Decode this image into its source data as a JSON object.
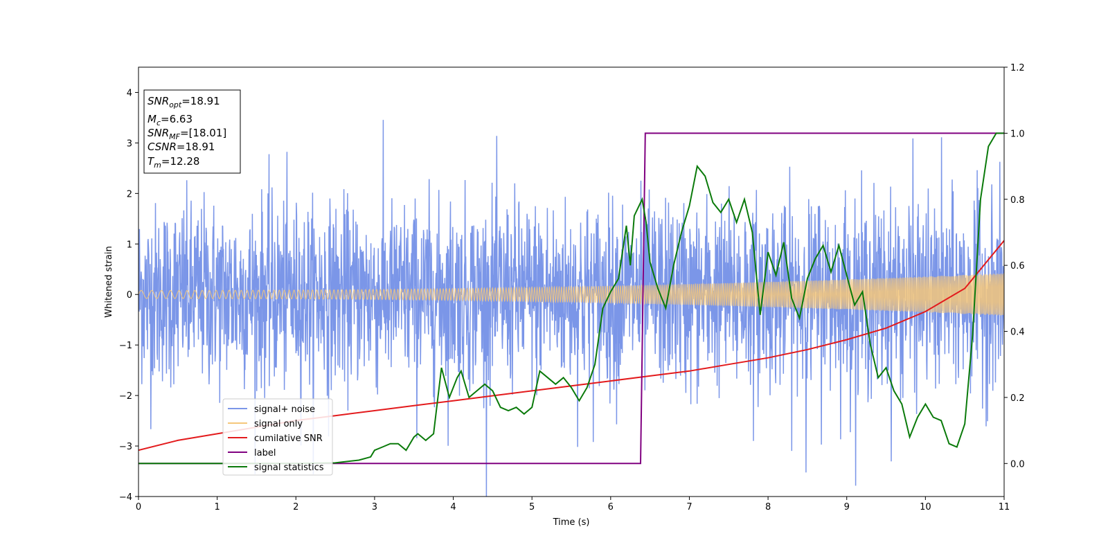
{
  "chart_data": {
    "type": "line",
    "xlabel": "Time (s)",
    "ylabel": "Whitened strain",
    "xlim": [
      0,
      11
    ],
    "ylim": [
      -4,
      4.5
    ],
    "y2lim": [
      -0.1,
      1.2
    ],
    "xticks": [
      0,
      1,
      2,
      3,
      4,
      5,
      6,
      7,
      8,
      9,
      10,
      11
    ],
    "yticks": [
      -4,
      -3,
      -2,
      -1,
      0,
      1,
      2,
      3,
      4
    ],
    "yticks_labels": [
      "−4",
      "−3",
      "−2",
      "−1",
      "0",
      "1",
      "2",
      "3",
      "4"
    ],
    "y2ticks": [
      0.0,
      0.2,
      0.4,
      0.6,
      0.8,
      1.0,
      1.2
    ],
    "y2ticks_labels": [
      "0.0",
      "0.2",
      "0.4",
      "0.6",
      "0.8",
      "1.0",
      "1.2"
    ],
    "grid": false,
    "legend_position": "bottom-left",
    "stats_box": {
      "position": "top-left",
      "lines": [
        {
          "var": "SNR",
          "sub": "opt",
          "value": "=18.91"
        },
        {
          "var": "M",
          "sub": "c",
          "value": "=6.63"
        },
        {
          "var": "SNR",
          "sub": "MF",
          "value": "=[18.01]"
        },
        {
          "var": "CSNR",
          "sub": "",
          "value": "=18.91"
        },
        {
          "var": "T",
          "sub": "m",
          "value": "=12.28"
        }
      ]
    },
    "series": [
      {
        "name": "signal+ noise",
        "axis": "left",
        "color": "#7b96e8",
        "style": "noise",
        "noise_sigma": 0.9,
        "samples": 2600,
        "envelope_start": 0.08,
        "envelope_end": 0.42
      },
      {
        "name": "signal only",
        "axis": "left",
        "color": "#f5c77a",
        "style": "chirp",
        "amp_start": 0.08,
        "amp_end": 0.42,
        "freq_start": 7.0,
        "freq_end": 60.0
      },
      {
        "name": "cumilative SNR",
        "axis": "right",
        "color": "#e31a1c",
        "x": [
          0,
          0.5,
          1,
          1.5,
          2,
          2.5,
          3,
          3.5,
          4,
          4.5,
          5,
          5.5,
          6,
          6.5,
          7,
          7.5,
          8,
          8.5,
          9,
          9.5,
          10,
          10.5,
          11
        ],
        "values": [
          0.04,
          0.07,
          0.09,
          0.11,
          0.13,
          0.145,
          0.16,
          0.175,
          0.19,
          0.205,
          0.22,
          0.235,
          0.25,
          0.265,
          0.28,
          0.3,
          0.32,
          0.345,
          0.375,
          0.41,
          0.46,
          0.53,
          0.675
        ]
      },
      {
        "name": "label",
        "axis": "right",
        "color": "#800080",
        "x": [
          0,
          6.38,
          6.44,
          11
        ],
        "values": [
          0.0,
          0.0,
          1.0,
          1.0
        ]
      },
      {
        "name": "signal statistics",
        "axis": "right",
        "color": "#0a7a0a",
        "x": [
          0,
          1,
          2,
          2.5,
          2.8,
          2.95,
          3.0,
          3.1,
          3.2,
          3.3,
          3.4,
          3.5,
          3.55,
          3.65,
          3.75,
          3.85,
          3.95,
          4.05,
          4.1,
          4.2,
          4.3,
          4.4,
          4.5,
          4.6,
          4.7,
          4.8,
          4.9,
          5.0,
          5.1,
          5.2,
          5.3,
          5.4,
          5.5,
          5.6,
          5.7,
          5.8,
          5.9,
          6.0,
          6.1,
          6.2,
          6.25,
          6.3,
          6.4,
          6.45,
          6.5,
          6.6,
          6.7,
          6.8,
          6.9,
          7.0,
          7.1,
          7.2,
          7.3,
          7.4,
          7.5,
          7.6,
          7.7,
          7.8,
          7.9,
          8.0,
          8.1,
          8.2,
          8.3,
          8.4,
          8.5,
          8.6,
          8.7,
          8.8,
          8.9,
          9.0,
          9.1,
          9.2,
          9.3,
          9.4,
          9.5,
          9.6,
          9.7,
          9.8,
          9.9,
          10.0,
          10.1,
          10.2,
          10.3,
          10.4,
          10.5,
          10.6,
          10.7,
          10.8,
          10.9,
          11.0
        ],
        "values": [
          0.0,
          0.0,
          0.0,
          0.002,
          0.01,
          0.02,
          0.04,
          0.05,
          0.06,
          0.06,
          0.04,
          0.08,
          0.09,
          0.07,
          0.09,
          0.29,
          0.2,
          0.26,
          0.28,
          0.2,
          0.22,
          0.24,
          0.22,
          0.17,
          0.16,
          0.17,
          0.15,
          0.17,
          0.28,
          0.26,
          0.24,
          0.26,
          0.23,
          0.19,
          0.23,
          0.3,
          0.47,
          0.52,
          0.56,
          0.72,
          0.6,
          0.75,
          0.8,
          0.73,
          0.61,
          0.53,
          0.47,
          0.6,
          0.7,
          0.78,
          0.9,
          0.87,
          0.79,
          0.76,
          0.8,
          0.73,
          0.8,
          0.7,
          0.45,
          0.64,
          0.57,
          0.67,
          0.5,
          0.44,
          0.56,
          0.62,
          0.66,
          0.58,
          0.66,
          0.57,
          0.48,
          0.52,
          0.36,
          0.26,
          0.29,
          0.22,
          0.18,
          0.08,
          0.14,
          0.18,
          0.14,
          0.13,
          0.06,
          0.05,
          0.12,
          0.39,
          0.8,
          0.96,
          1.0,
          1.0
        ]
      }
    ]
  }
}
